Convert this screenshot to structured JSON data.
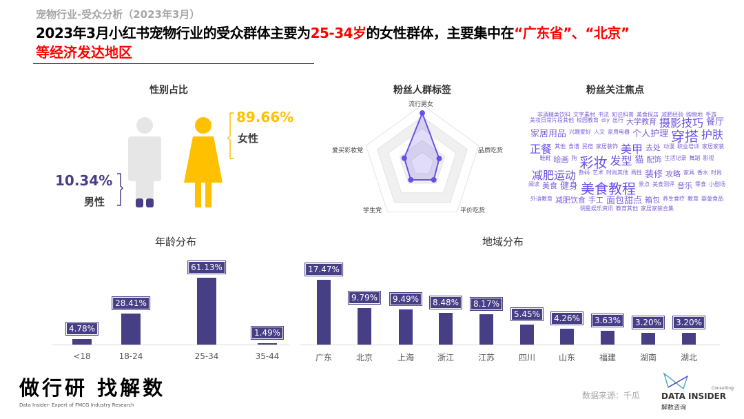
{
  "header": {
    "subtitle": "宠物行业-受众分析（2023年3月）",
    "title_a": "2023年3月小红书宠物行业的受众群体主要为",
    "title_b": "25-34岁",
    "title_c": "的女性群体，主要集中在",
    "title_d": "“广东省”",
    "title_e": "、",
    "title_f": "“北京”",
    "title_line2": "等经济发达地区"
  },
  "gender": {
    "title": "性别占比",
    "female_pct": "89.66%",
    "female_label": "女性",
    "male_pct": "10.34%",
    "male_label": "男性",
    "female_color": "#FFC000",
    "male_color": "#e6e6e6"
  },
  "radar": {
    "title": "粉丝人群标签",
    "axes": [
      "流行男女",
      "品质吃货",
      "平价吃货",
      "学生党",
      "爱买彩妆党"
    ],
    "values": [
      0.86,
      0.3,
      0.33,
      0.33,
      0.32
    ],
    "color": "#6a4ee8"
  },
  "cloud": {
    "title": "粉丝关注焦点",
    "words": [
      [
        "非酒精类饮料",
        1
      ],
      [
        "文字素材",
        1
      ],
      [
        "书法",
        1
      ],
      [
        "知识科普",
        1
      ],
      [
        "美食探店",
        1
      ],
      [
        "减肥经验",
        1
      ],
      [
        "购物地",
        1
      ],
      [
        "手游",
        1
      ],
      [
        "美妆日常片段其他",
        1
      ],
      [
        "校园教育",
        1
      ],
      [
        "diy",
        1
      ],
      [
        "出行",
        1
      ],
      [
        "大学教育",
        2
      ],
      [
        "摄影技巧",
        4
      ],
      [
        "餐厅",
        3
      ],
      [
        "家居用品",
        3
      ],
      [
        "兴趣爱好",
        1
      ],
      [
        "人文",
        1
      ],
      [
        "家用电器",
        1
      ],
      [
        "个人护理",
        3
      ],
      [
        "穿搭",
        5
      ],
      [
        "护肤",
        4
      ],
      [
        "正餐",
        4
      ],
      [
        "其他",
        1
      ],
      [
        "食谱",
        1
      ],
      [
        "民宿",
        1
      ],
      [
        "家居装饰",
        1
      ],
      [
        "美甲",
        4
      ],
      [
        "去处",
        2
      ],
      [
        "动漫",
        1
      ],
      [
        "职业培训",
        1
      ],
      [
        "家居家装",
        1
      ],
      [
        "鞋靴",
        1
      ],
      [
        "绘画",
        2
      ],
      [
        "狗",
        1
      ],
      [
        "彩妆",
        5
      ],
      [
        "发型",
        4
      ],
      [
        "猫",
        3
      ],
      [
        "配饰",
        2
      ],
      [
        "生活记录",
        1
      ],
      [
        "舞蹈",
        1
      ],
      [
        "影视",
        1
      ],
      [
        "减肥运动",
        4
      ],
      [
        "数码",
        1
      ],
      [
        "艺术",
        1
      ],
      [
        "时尚其他",
        1
      ],
      [
        "两性",
        1
      ],
      [
        "装修",
        3
      ],
      [
        "攻略",
        2
      ],
      [
        "家具",
        1
      ],
      [
        "香水",
        1
      ],
      [
        "时尚",
        1
      ],
      [
        "阅读",
        1
      ],
      [
        "美食",
        2
      ],
      [
        "健身",
        3
      ],
      [
        "美食教程",
        5
      ],
      [
        "景点",
        1
      ],
      [
        "美食测评",
        1
      ],
      [
        "音乐",
        2
      ],
      [
        "零食",
        1
      ],
      [
        "小剧场",
        1
      ],
      [
        "外语教育",
        1
      ],
      [
        "减肥饮食",
        2
      ],
      [
        "手工",
        2
      ],
      [
        "面包甜点",
        3
      ],
      [
        "箱包",
        2
      ],
      [
        "养生食疗",
        1
      ],
      [
        "教育",
        1
      ],
      [
        "婴童食品",
        1
      ],
      [
        "明星娱乐资讯",
        1
      ],
      [
        "教育其他",
        1
      ],
      [
        "家居家装合集",
        1
      ]
    ]
  },
  "age": {
    "title": "年龄分布",
    "chart_data": {
      "type": "bar",
      "categories": [
        "<18",
        "18-24",
        "25-34",
        "35-44"
      ],
      "values": [
        4.78,
        28.41,
        61.13,
        1.49
      ],
      "labels": [
        "4.78%",
        "28.41%",
        "61.13%",
        "1.49%"
      ],
      "color": "#463F86"
    }
  },
  "region": {
    "title": "地域分布",
    "chart_data": {
      "type": "bar",
      "categories": [
        "广东",
        "北京",
        "上海",
        "浙江",
        "江苏",
        "四川",
        "山东",
        "福建",
        "湖南",
        "湖北"
      ],
      "values": [
        17.47,
        9.79,
        9.49,
        8.48,
        8.17,
        5.45,
        4.26,
        3.63,
        3.2,
        3.2
      ],
      "labels": [
        "17.47%",
        "9.79%",
        "9.49%",
        "8.48%",
        "8.17%",
        "5.45%",
        "4.26%",
        "3.63%",
        "3.20%",
        "3.20%"
      ],
      "color": "#463F86"
    }
  },
  "footer": {
    "slogan": "做行研 找解数",
    "tagline": "Data Insider- Expert of FMCG Industry Research",
    "source": "数据来源：千瓜",
    "logo_top": "Consulting",
    "logo_name": "DATA INSIDER",
    "logo_cn": "解数咨询"
  }
}
